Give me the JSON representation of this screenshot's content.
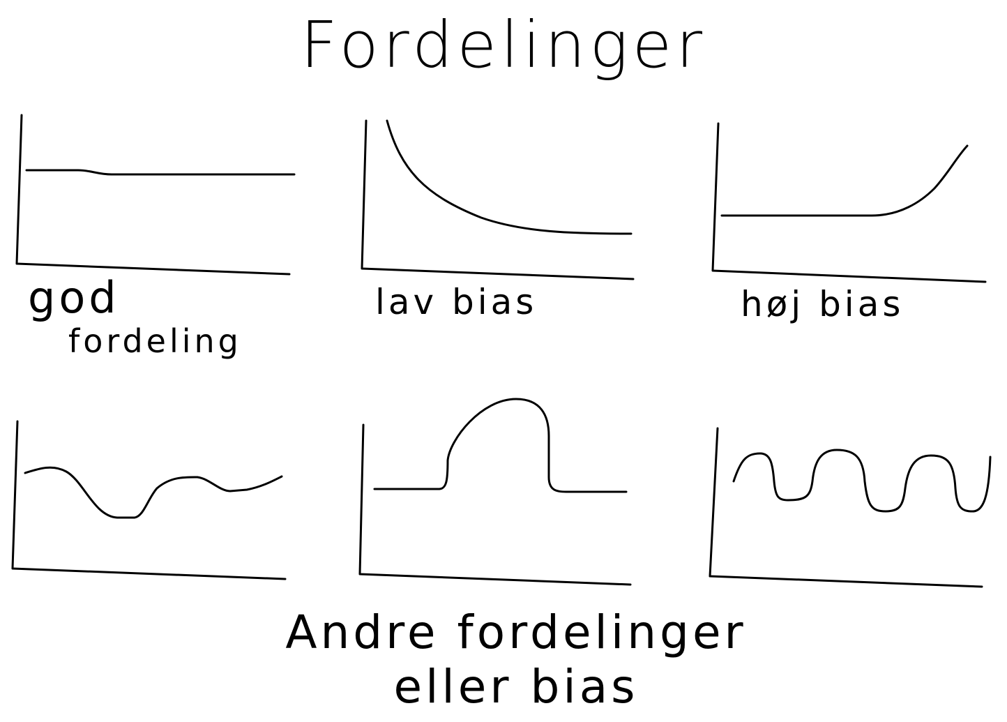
{
  "title": "Fordelinger",
  "panels": [
    {
      "label_lines": [
        "god",
        "fordeling"
      ]
    },
    {
      "label": "lav bias"
    },
    {
      "label": "høj bias"
    }
  ],
  "bottom_caption": {
    "line1": "Andre fordelinger",
    "line2": "eller bias"
  }
}
